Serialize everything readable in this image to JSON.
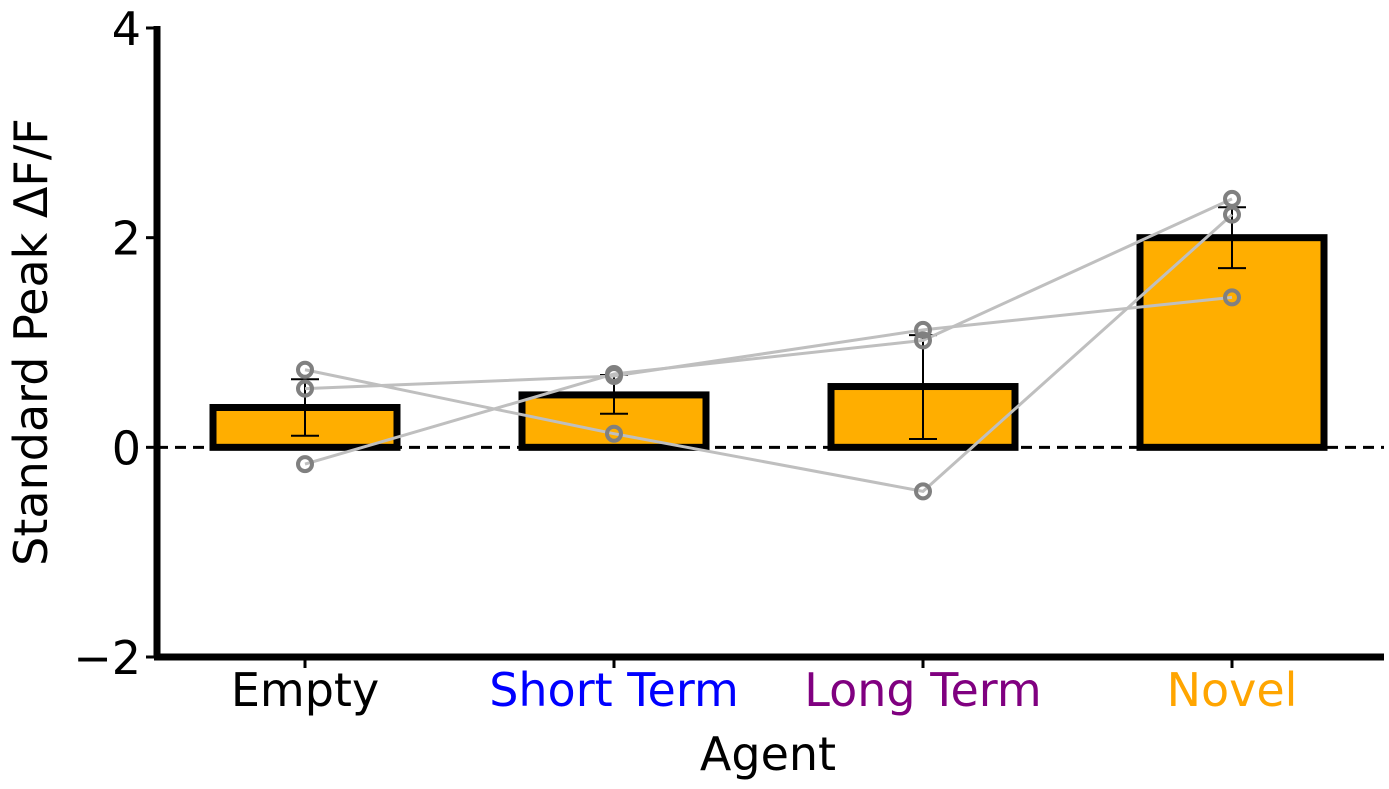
{
  "chart_data": {
    "type": "bar",
    "title": "",
    "xlabel": "Agent",
    "ylabel": "Standard Peak ΔF/F",
    "ylim": [
      -2,
      4
    ],
    "yticks": [
      "−2",
      "0",
      "2",
      "4"
    ],
    "categories": [
      "Empty",
      "Short Term",
      "Long Term",
      "Novel"
    ],
    "category_colors": [
      "#000000",
      "#0000ff",
      "#800080",
      "#ffa500"
    ],
    "bar_color": "#ffae00",
    "bar_edge_color": "#000000",
    "values": [
      0.38,
      0.5,
      0.58,
      2.0
    ],
    "error_lower": [
      0.11,
      0.32,
      0.08,
      1.71
    ],
    "error_upper": [
      0.65,
      0.69,
      1.07,
      2.29
    ],
    "zero_line": "dashed",
    "grid": false,
    "individual_series": [
      {
        "values": [
          0.74,
          0.13,
          -0.42,
          2.22
        ]
      },
      {
        "values": [
          0.56,
          0.68,
          1.12,
          1.43
        ]
      },
      {
        "values": [
          -0.16,
          0.7,
          1.02,
          2.37
        ]
      }
    ],
    "individual_color": "#bfbfbf",
    "marker_edge_color": "#808080"
  }
}
